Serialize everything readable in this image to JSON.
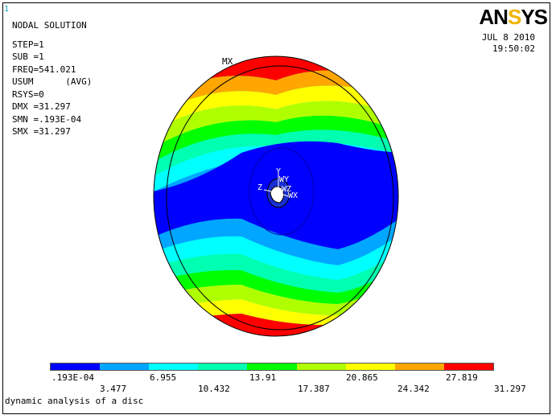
{
  "window_number": "1",
  "header": {
    "title": "NODAL SOLUTION",
    "lines": [
      "STEP=1",
      "SUB =1",
      "FREQ=541.021",
      "USUM      (AVG)",
      "RSYS=0",
      "DMX =31.297",
      "SMN =.193E-04",
      "SMX =31.297"
    ]
  },
  "logo": {
    "text_main": "AN",
    "text_accent": "S",
    "text_tail": "YS"
  },
  "date": "JUL  8 2010",
  "time": "19:50:02",
  "max_label": "MX",
  "axis_labels": {
    "x": "X",
    "y": "Y",
    "z": "Z",
    "wx": "WX",
    "wy": "WY",
    "wz": "WZ"
  },
  "legend": {
    "colors": [
      "#0000ff",
      "#00a6ff",
      "#00ffff",
      "#00ffb0",
      "#00ff00",
      "#b0ff00",
      "#ffff00",
      "#ffa600",
      "#ff0000"
    ],
    "values_top": [
      ".193E-04",
      "6.955",
      "13.91",
      "20.865",
      "27.819"
    ],
    "values_bottom": [
      "3.477",
      "10.432",
      "17.387",
      "24.342",
      "31.297"
    ]
  },
  "caption": "dynamic analysis of a disc"
}
